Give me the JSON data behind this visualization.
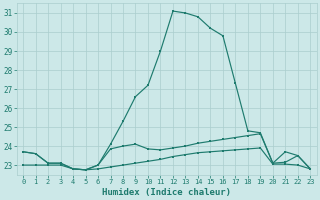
{
  "xlabel": "Humidex (Indice chaleur)",
  "x": [
    0,
    1,
    2,
    3,
    4,
    5,
    6,
    7,
    8,
    9,
    10,
    11,
    12,
    13,
    14,
    15,
    16,
    17,
    18,
    19,
    20,
    21,
    22,
    23
  ],
  "y_main": [
    23.7,
    23.6,
    23.1,
    23.1,
    22.8,
    22.75,
    23.0,
    24.1,
    25.3,
    26.6,
    27.2,
    29.0,
    31.1,
    31.0,
    30.8,
    30.2,
    29.8,
    27.3,
    24.8,
    24.7,
    23.1,
    23.7,
    23.5,
    22.8
  ],
  "y_mid": [
    23.7,
    23.6,
    23.1,
    23.1,
    22.8,
    22.75,
    23.0,
    23.85,
    24.0,
    24.1,
    23.85,
    23.8,
    23.9,
    24.0,
    24.15,
    24.25,
    24.35,
    24.45,
    24.55,
    24.65,
    23.1,
    23.15,
    23.5,
    22.8
  ],
  "y_low": [
    23.0,
    23.0,
    23.0,
    23.0,
    22.8,
    22.75,
    22.8,
    22.9,
    23.0,
    23.1,
    23.2,
    23.3,
    23.45,
    23.55,
    23.65,
    23.7,
    23.75,
    23.8,
    23.85,
    23.9,
    23.05,
    23.05,
    23.0,
    22.8
  ],
  "ylim": [
    22.5,
    31.5
  ],
  "yticks": [
    23,
    24,
    25,
    26,
    27,
    28,
    29,
    30,
    31
  ],
  "line_color": "#1e7b6e",
  "bg_color": "#cce8e8",
  "grid_color": "#aacece",
  "tick_label_color": "#1e7b6e",
  "xlabel_color": "#1e7b6e"
}
